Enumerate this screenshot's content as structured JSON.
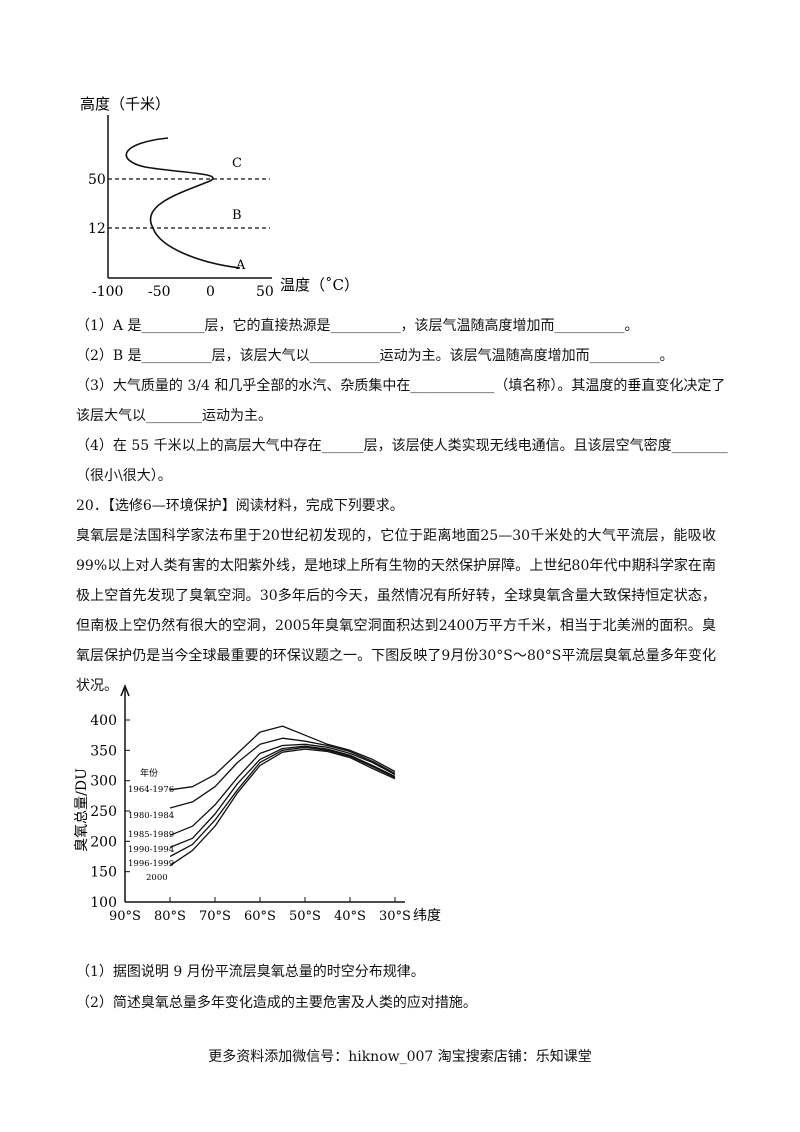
{
  "figure1": {
    "ylabel": "高度（千米）",
    "xlabel": "温度（˚C）",
    "yticks": [
      "50",
      "12"
    ],
    "xticks": [
      "-100",
      "-50",
      "0",
      "50"
    ],
    "layer_labels": [
      "C",
      "B",
      "A"
    ]
  },
  "questions1": [
    "（1）A 是_________层，它的直接热源是__________，该层气温随高度增加而__________。",
    "（2）B 是__________层，该层大气以__________运动为主。该层气温随高度增加而__________。",
    "（3）大气质量的 3/4 和几乎全部的水汽、杂质集中在____________（填名称）。其温度的垂直变化决定了",
    "该层大气以________运动为主。",
    "（4）在 55 千米以上的高层大气中存在______层，该层使人类实现无线电通信。且该层空气密度________",
    "（很小\\很大）。"
  ],
  "q20_title": "20．【选修6—环境保护】阅读材料，完成下列要求。",
  "q20_paragraph": "臭氧层是法国科学家法布里于20世纪初发现的，它位于距离地面25—30千米处的大气平流层，能吸收99%以上对人类有害的太阳紫外线，是地球上所有生物的天然保护屏障。上世纪80年代中期科学家在南极上空首先发现了臭氧空洞。30多年后的今天，虽然情况有所好转，全球臭氧含量大致保持恒定状态，但南极上空仍然有很大的空洞，2005年臭氧空洞面积达到2400万平方千米，相当于北美洲的面积。臭氧层保护仍是当今全球最重要的环保议题之一。下图反映了9月份30°S～80°S平流层臭氧总量多年变化状况。",
  "chart_data": {
    "type": "line",
    "ylabel": "臭氧总量/DU",
    "xlabel": "纬度",
    "ylim": [
      100,
      400
    ],
    "yticks": [
      100,
      150,
      200,
      250,
      300,
      350,
      400
    ],
    "xticks": [
      "90°S",
      "80°S",
      "70°S",
      "60°S",
      "50°S",
      "40°S",
      "30°S"
    ],
    "legend_title": "年份",
    "series": [
      {
        "name": "1964-1976",
        "x": [
          80,
          75,
          70,
          65,
          60,
          55,
          50,
          45,
          40,
          35,
          30
        ],
        "y": [
          285,
          290,
          310,
          345,
          380,
          390,
          375,
          360,
          350,
          335,
          315
        ]
      },
      {
        "name": "1980-1984",
        "x": [
          80,
          75,
          70,
          65,
          60,
          55,
          50,
          45,
          40,
          35,
          30
        ],
        "y": [
          255,
          265,
          290,
          330,
          360,
          370,
          365,
          358,
          348,
          332,
          312
        ]
      },
      {
        "name": "1985-1989",
        "x": [
          80,
          75,
          70,
          65,
          60,
          55,
          50,
          45,
          40,
          35,
          30
        ],
        "y": [
          210,
          225,
          260,
          305,
          345,
          358,
          360,
          355,
          345,
          330,
          310
        ]
      },
      {
        "name": "1990-1994",
        "x": [
          80,
          75,
          70,
          65,
          60,
          55,
          50,
          45,
          40,
          35,
          30
        ],
        "y": [
          190,
          205,
          245,
          295,
          335,
          353,
          357,
          352,
          342,
          325,
          307
        ]
      },
      {
        "name": "1996-1999",
        "x": [
          80,
          75,
          70,
          65,
          60,
          55,
          50,
          45,
          40,
          35,
          30
        ],
        "y": [
          175,
          195,
          235,
          285,
          330,
          350,
          355,
          350,
          340,
          323,
          305
        ]
      },
      {
        "name": "2000",
        "x": [
          80,
          75,
          70,
          65,
          60,
          55,
          50,
          45,
          40,
          35,
          30
        ],
        "y": [
          160,
          185,
          225,
          280,
          325,
          347,
          352,
          348,
          338,
          320,
          303
        ]
      }
    ]
  },
  "questions2": [
    "（1）据图说明 9 月份平流层臭氧总量的时空分布规律。",
    "（2）简述臭氧总量多年变化造成的主要危害及人类的应对措施。"
  ],
  "footer": "更多资料添加微信号：hiknow_007    淘宝搜索店铺：乐知课堂"
}
